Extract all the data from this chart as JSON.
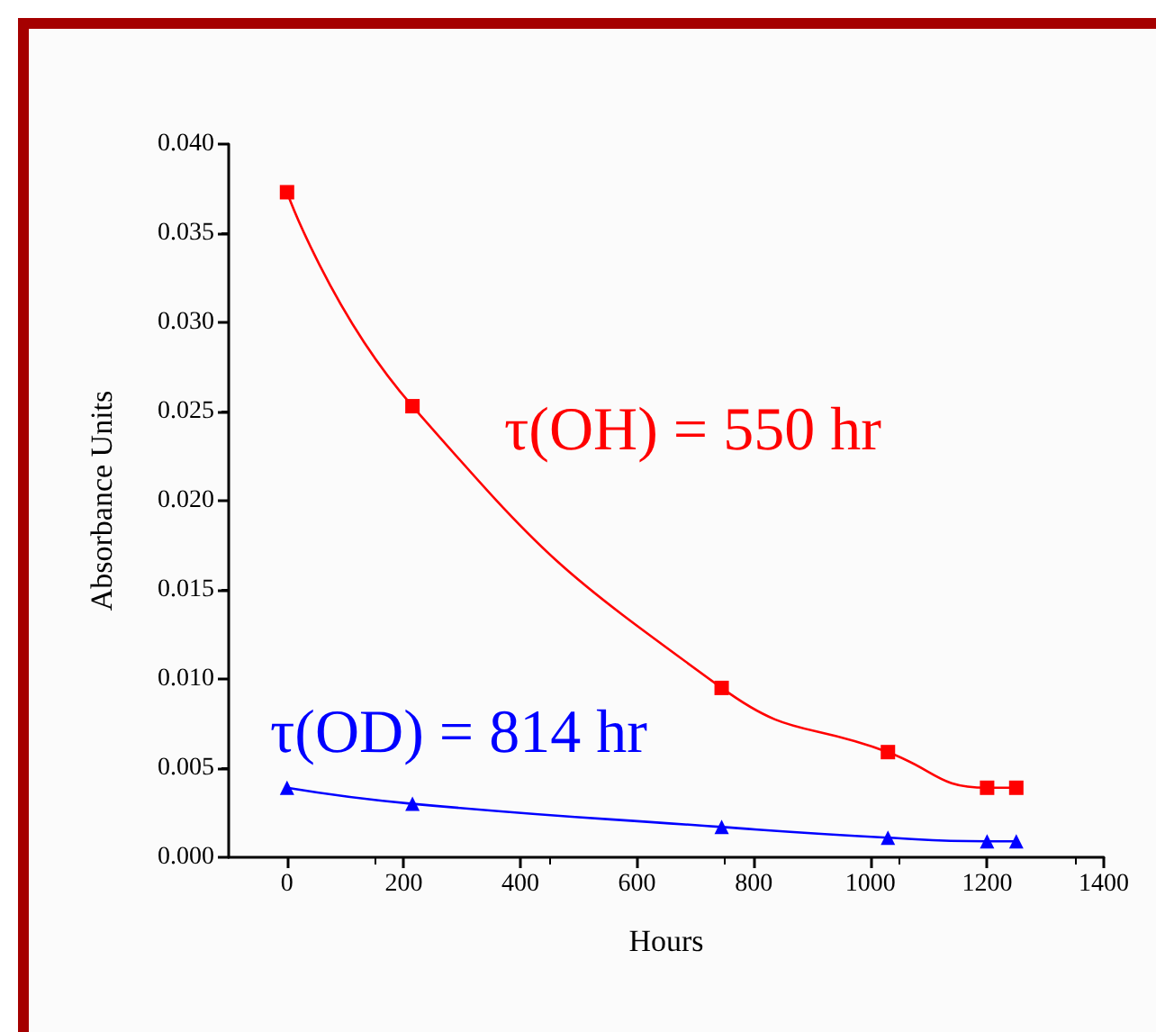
{
  "chart_data": {
    "type": "line",
    "xlabel": "Hours",
    "ylabel": "Absorbance Units",
    "x": [
      0,
      215,
      745,
      1030,
      1200,
      1250
    ],
    "series": [
      {
        "color": "#ff0000",
        "marker": "square",
        "values": [
          0.0373,
          0.0253,
          0.0095,
          0.0059,
          0.0039,
          0.0039
        ]
      },
      {
        "color": "#0000ff",
        "marker": "triangle",
        "values": [
          0.0039,
          0.003,
          0.0017,
          0.0011,
          0.0009,
          0.0009
        ]
      }
    ],
    "xlim": [
      -100,
      1400
    ],
    "xticks": [
      0,
      200,
      400,
      600,
      800,
      1000,
      1200,
      1400
    ],
    "ylim": [
      0,
      0.04
    ],
    "yticks": [
      {
        "value": 0,
        "label": "0.000"
      },
      {
        "value": 0.005,
        "label": "0.005"
      },
      {
        "value": 0.01,
        "label": "0.010"
      },
      {
        "value": 0.015,
        "label": "0.015"
      },
      {
        "value": 0.02,
        "label": "0.020"
      },
      {
        "value": 0.025,
        "label": "0.025"
      },
      {
        "value": 0.03,
        "label": "0.030"
      },
      {
        "value": 0.035,
        "label": "0.035"
      },
      {
        "value": 0.04,
        "label": "0.040"
      }
    ],
    "annotations": [
      "τ(OH) = 550 hr",
      "τ(OD) = 814 hr"
    ],
    "grid": false
  }
}
